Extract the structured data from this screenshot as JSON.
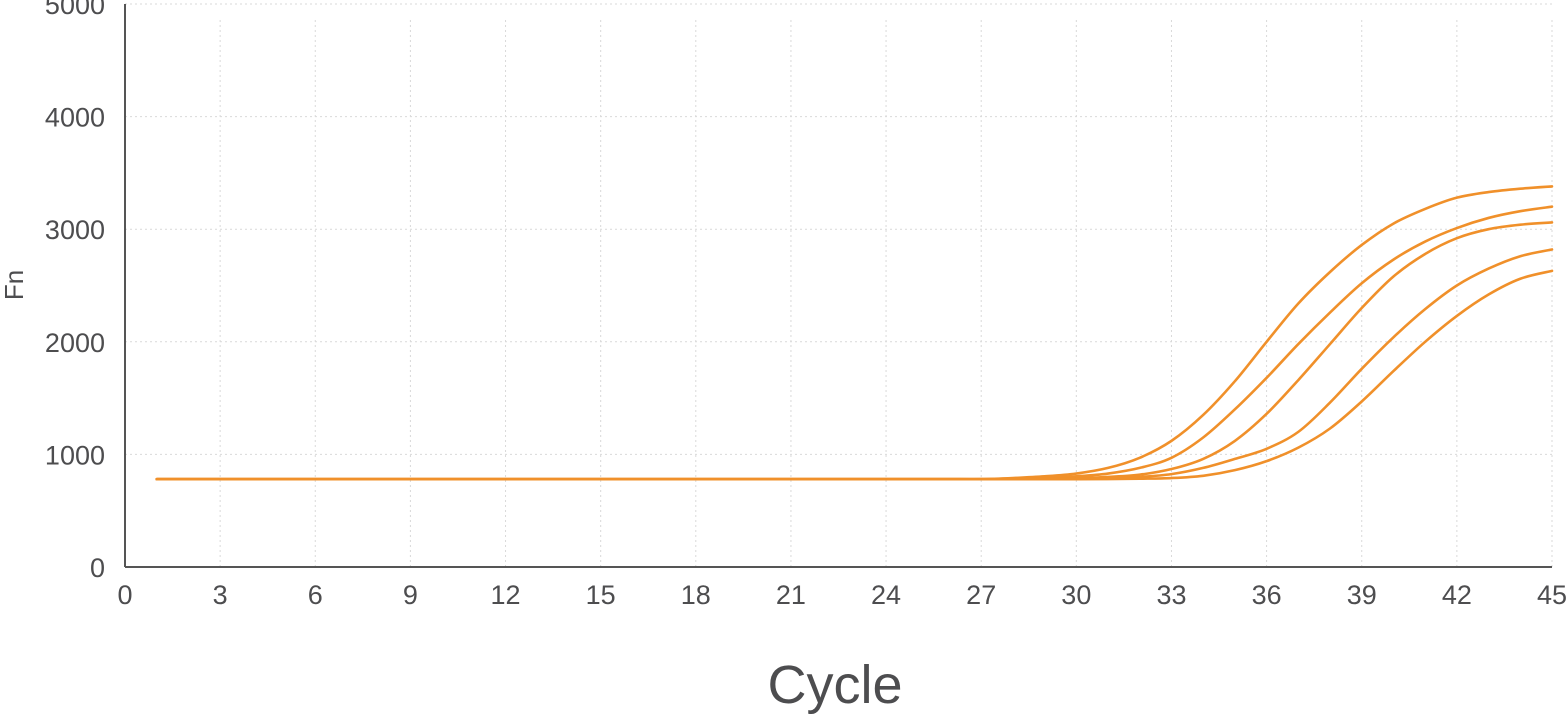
{
  "chart_data": {
    "type": "line",
    "xlabel": "Cycle",
    "ylabel": "Fn",
    "xlim": [
      0,
      45
    ],
    "ylim": [
      0,
      5000
    ],
    "xticks": [
      0,
      3,
      6,
      9,
      12,
      15,
      18,
      21,
      24,
      27,
      30,
      33,
      36,
      39,
      42,
      45
    ],
    "yticks": [
      0,
      1000,
      2000,
      3000,
      4000,
      5000
    ],
    "grid": true,
    "line_color": "#f0902a",
    "x": [
      1,
      2,
      3,
      4,
      5,
      6,
      7,
      8,
      9,
      10,
      11,
      12,
      13,
      14,
      15,
      16,
      17,
      18,
      19,
      20,
      21,
      22,
      23,
      24,
      25,
      26,
      27,
      28,
      29,
      30,
      31,
      32,
      33,
      34,
      35,
      36,
      37,
      38,
      39,
      40,
      41,
      42,
      43,
      44,
      45
    ],
    "series": [
      {
        "values": [
          780,
          780,
          780,
          780,
          780,
          780,
          780,
          780,
          780,
          780,
          780,
          780,
          780,
          780,
          780,
          780,
          780,
          780,
          780,
          780,
          780,
          780,
          780,
          780,
          780,
          780,
          780,
          790,
          805,
          830,
          880,
          970,
          1120,
          1350,
          1650,
          2000,
          2340,
          2620,
          2860,
          3050,
          3180,
          3280,
          3330,
          3360,
          3380
        ]
      },
      {
        "values": [
          780,
          780,
          780,
          780,
          780,
          780,
          780,
          780,
          780,
          780,
          780,
          780,
          780,
          780,
          780,
          780,
          780,
          780,
          780,
          780,
          780,
          780,
          780,
          780,
          780,
          780,
          780,
          782,
          790,
          805,
          830,
          880,
          970,
          1150,
          1400,
          1680,
          1980,
          2260,
          2520,
          2730,
          2890,
          3010,
          3100,
          3160,
          3200
        ]
      },
      {
        "values": [
          780,
          780,
          780,
          780,
          780,
          780,
          780,
          780,
          780,
          780,
          780,
          780,
          780,
          780,
          780,
          780,
          780,
          780,
          780,
          780,
          780,
          780,
          780,
          780,
          780,
          780,
          780,
          780,
          782,
          788,
          800,
          820,
          870,
          960,
          1120,
          1360,
          1660,
          1980,
          2300,
          2580,
          2780,
          2920,
          3000,
          3040,
          3060
        ]
      },
      {
        "values": [
          780,
          780,
          780,
          780,
          780,
          780,
          780,
          780,
          780,
          780,
          780,
          780,
          780,
          780,
          780,
          780,
          780,
          780,
          780,
          780,
          780,
          780,
          780,
          780,
          780,
          780,
          780,
          780,
          780,
          782,
          788,
          800,
          825,
          880,
          960,
          1050,
          1200,
          1460,
          1760,
          2040,
          2290,
          2500,
          2650,
          2760,
          2820
        ]
      },
      {
        "values": [
          780,
          780,
          780,
          780,
          780,
          780,
          780,
          780,
          780,
          780,
          780,
          780,
          780,
          780,
          780,
          780,
          780,
          780,
          780,
          780,
          780,
          780,
          780,
          780,
          780,
          780,
          780,
          780,
          780,
          780,
          781,
          784,
          790,
          810,
          860,
          940,
          1060,
          1230,
          1470,
          1740,
          2000,
          2230,
          2420,
          2560,
          2630
        ]
      }
    ]
  }
}
